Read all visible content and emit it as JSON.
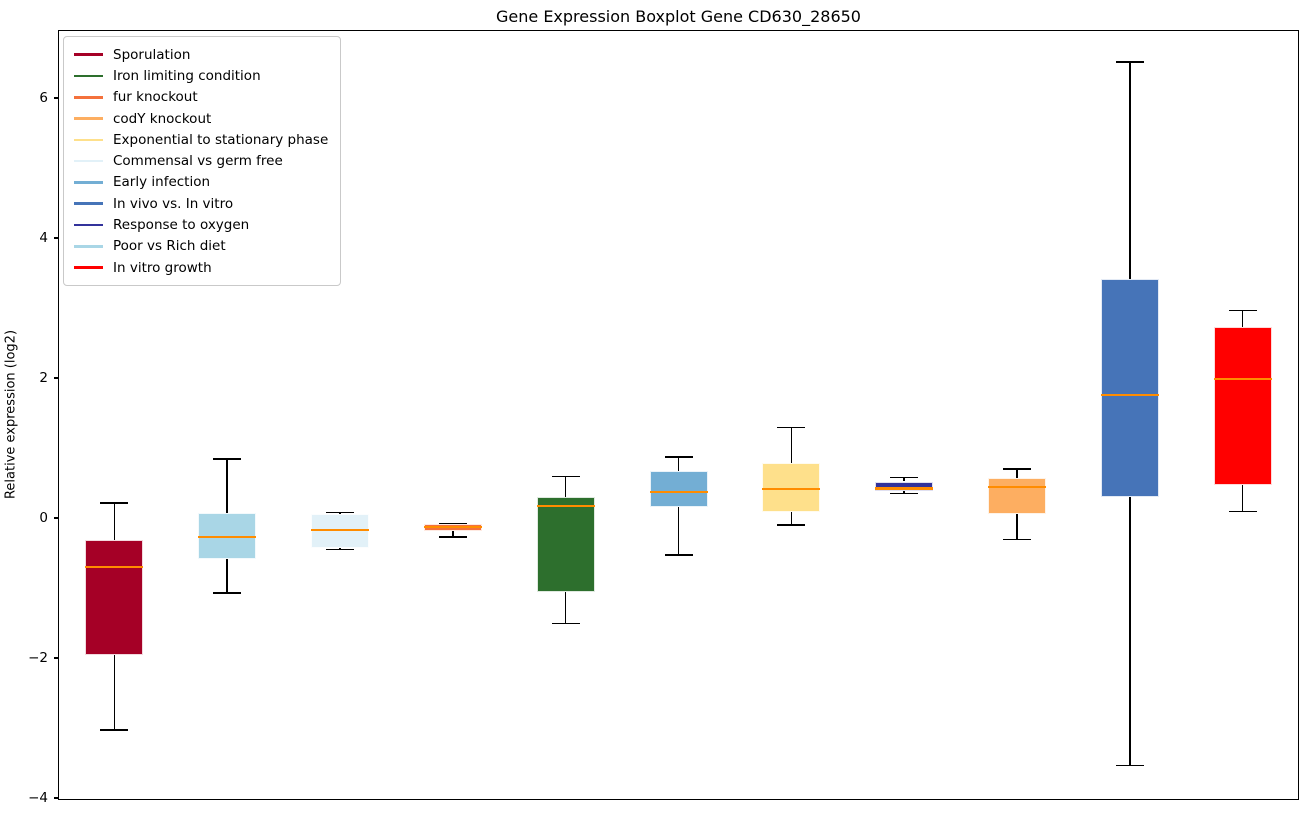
{
  "title": "Gene Expression Boxplot Gene CD630_28650",
  "chart_data": {
    "type": "boxplot",
    "title": "Gene Expression Boxplot Gene CD630_28650",
    "xlabel": "",
    "ylabel": "Relative expression (log2)",
    "ylim": [
      -4.03,
      6.97
    ],
    "grid": false,
    "median_color": "#ff8c00",
    "yticks": [
      {
        "label": "6",
        "value": 6
      },
      {
        "label": "4",
        "value": 4
      },
      {
        "label": "2",
        "value": 2
      },
      {
        "label": "0",
        "value": 0
      },
      {
        "label": "−2",
        "value": -2
      },
      {
        "label": "−4",
        "value": -4
      }
    ],
    "series": [
      {
        "name": "Sporulation",
        "color": "#a50026",
        "whislo": -3.03,
        "q1": -1.96,
        "med": -0.7,
        "q3": -0.31,
        "whishi": 0.21
      },
      {
        "name": "Poor vs Rich diet",
        "color": "#a9d6e6",
        "whislo": -1.07,
        "q1": -0.59,
        "med": -0.27,
        "q3": 0.07,
        "whishi": 0.84
      },
      {
        "name": "Commensal vs germ free",
        "color": "#e2f1f8",
        "whislo": -0.45,
        "q1": -0.43,
        "med": -0.17,
        "q3": 0.06,
        "whishi": 0.08
      },
      {
        "name": "fur knockout",
        "color": "#f4713c",
        "whislo": -0.27,
        "q1": -0.19,
        "med": -0.13,
        "q3": -0.08,
        "whishi": -0.08
      },
      {
        "name": "Iron limiting condition",
        "color": "#2d6f2d",
        "whislo": -1.51,
        "q1": -1.06,
        "med": 0.17,
        "q3": 0.3,
        "whishi": 0.59
      },
      {
        "name": "Early infection",
        "color": "#73aed4",
        "whislo": -0.53,
        "q1": 0.16,
        "med": 0.37,
        "q3": 0.67,
        "whishi": 0.87
      },
      {
        "name": "Exponential to stationary phase",
        "color": "#fee08b",
        "whislo": -0.1,
        "q1": 0.08,
        "med": 0.41,
        "q3": 0.79,
        "whishi": 1.29
      },
      {
        "name": "Response to oxygen",
        "color": "#32329b",
        "whislo": 0.35,
        "q1": 0.38,
        "med": 0.42,
        "q3": 0.52,
        "whishi": 0.58
      },
      {
        "name": "codY knockout",
        "color": "#fdae61",
        "whislo": -0.31,
        "q1": 0.06,
        "med": 0.44,
        "q3": 0.57,
        "whishi": 0.7
      },
      {
        "name": "In vivo vs. In vitro",
        "color": "#4674b8",
        "whislo": -3.54,
        "q1": 0.3,
        "med": 1.76,
        "q3": 3.41,
        "whishi": 6.51
      },
      {
        "name": "In vitro growth",
        "color": "#ff0000",
        "whislo": 0.09,
        "q1": 0.47,
        "med": 1.99,
        "q3": 2.73,
        "whishi": 2.96
      }
    ],
    "legend": {
      "position": "upper left",
      "entries": [
        {
          "label": "Sporulation",
          "color": "#a50026"
        },
        {
          "label": "Iron limiting condition",
          "color": "#2d6f2d"
        },
        {
          "label": "fur knockout",
          "color": "#f4713c"
        },
        {
          "label": "codY knockout",
          "color": "#fdae61"
        },
        {
          "label": "Exponential to stationary phase",
          "color": "#fee08b"
        },
        {
          "label": "Commensal vs germ free",
          "color": "#e2f1f8"
        },
        {
          "label": "Early infection",
          "color": "#73aed4"
        },
        {
          "label": "In vivo vs. In vitro",
          "color": "#4674b8"
        },
        {
          "label": "Response to oxygen",
          "color": "#32329b"
        },
        {
          "label": "Poor vs Rich diet",
          "color": "#a9d6e6"
        },
        {
          "label": "In vitro growth",
          "color": "#ff0000"
        }
      ]
    }
  }
}
